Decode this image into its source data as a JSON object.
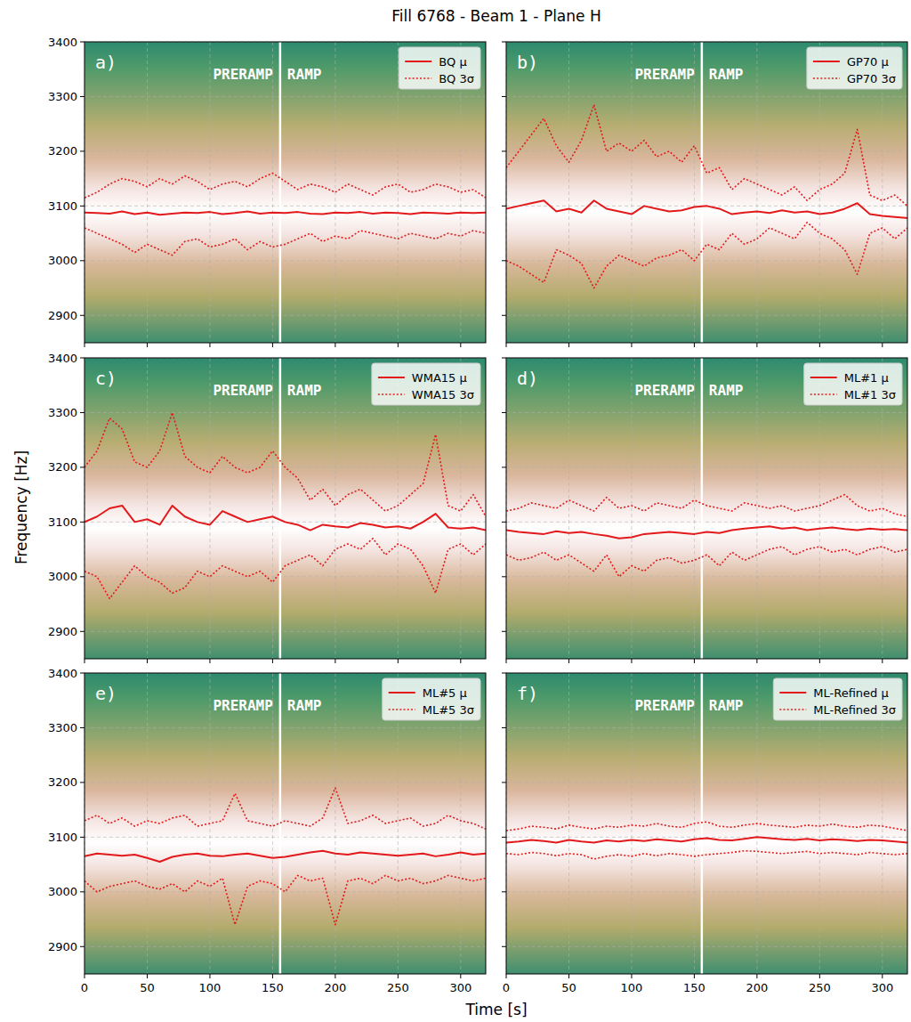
{
  "figure": {
    "title": "Fill 6768 - Beam 1 - Plane H",
    "xlabel": "Time [s]",
    "ylabel": "Frequency [Hz]"
  },
  "chart_data": [
    {
      "type": "line",
      "title": "a)",
      "tick_labels": "y",
      "grid": true,
      "legend": "upper right",
      "xlim": [
        0,
        320
      ],
      "ylim": [
        2850,
        3400
      ],
      "xticks": [
        0,
        50,
        100,
        150,
        200,
        250,
        300
      ],
      "yticks": [
        2900,
        3000,
        3100,
        3200,
        3300,
        3400
      ],
      "phase_boundary": 156,
      "phase_labels": [
        "PRERAMP",
        "RAMP"
      ],
      "spectral_peak": 3090,
      "spectral_width": 120,
      "x": [
        0,
        10,
        20,
        30,
        40,
        50,
        60,
        70,
        80,
        90,
        100,
        110,
        120,
        130,
        140,
        150,
        160,
        170,
        180,
        190,
        200,
        210,
        220,
        230,
        240,
        250,
        260,
        270,
        280,
        290,
        300,
        310,
        320
      ],
      "series": [
        {
          "name": "BQ μ",
          "color": "#e31a1c",
          "line_style": "solid",
          "values": [
            3088,
            3087,
            3086,
            3090,
            3085,
            3088,
            3084,
            3086,
            3088,
            3087,
            3089,
            3085,
            3087,
            3090,
            3086,
            3088,
            3087,
            3089,
            3086,
            3085,
            3088,
            3087,
            3089,
            3086,
            3088,
            3087,
            3085,
            3088,
            3087,
            3086,
            3088,
            3087,
            3088
          ]
        },
        {
          "name": "BQ 3σ",
          "color": "#e31a1c",
          "line_style": "dotted",
          "values": [
            3115,
            3125,
            3140,
            3150,
            3145,
            3135,
            3150,
            3140,
            3155,
            3145,
            3130,
            3140,
            3145,
            3135,
            3150,
            3160,
            3145,
            3130,
            3140,
            3135,
            3125,
            3140,
            3130,
            3120,
            3135,
            3140,
            3125,
            3130,
            3140,
            3135,
            3125,
            3130,
            3115
          ],
          "lower": [
            3060,
            3050,
            3040,
            3030,
            3015,
            3030,
            3020,
            3010,
            3035,
            3040,
            3025,
            3030,
            3040,
            3020,
            3035,
            3025,
            3030,
            3040,
            3050,
            3035,
            3045,
            3040,
            3055,
            3050,
            3045,
            3040,
            3050,
            3045,
            3040,
            3050,
            3045,
            3055,
            3050
          ]
        }
      ]
    },
    {
      "type": "line",
      "title": "b)",
      "tick_labels": false,
      "grid": true,
      "legend": "upper right",
      "xlim": [
        0,
        320
      ],
      "ylim": [
        2850,
        3400
      ],
      "xticks": [
        0,
        50,
        100,
        150,
        200,
        250,
        300
      ],
      "yticks": [
        2900,
        3000,
        3100,
        3200,
        3300,
        3400
      ],
      "phase_boundary": 156,
      "phase_labels": [
        "PRERAMP",
        "RAMP"
      ],
      "spectral_peak": 3090,
      "spectral_width": 120,
      "x": [
        0,
        10,
        20,
        30,
        40,
        50,
        60,
        70,
        80,
        90,
        100,
        110,
        120,
        130,
        140,
        150,
        160,
        170,
        180,
        190,
        200,
        210,
        220,
        230,
        240,
        250,
        260,
        270,
        280,
        290,
        300,
        310,
        320
      ],
      "series": [
        {
          "name": "GP70 μ",
          "color": "#e31a1c",
          "line_style": "solid",
          "values": [
            3095,
            3100,
            3105,
            3110,
            3090,
            3095,
            3088,
            3110,
            3095,
            3090,
            3085,
            3100,
            3095,
            3090,
            3092,
            3098,
            3100,
            3095,
            3085,
            3088,
            3090,
            3087,
            3092,
            3088,
            3090,
            3085,
            3088,
            3095,
            3105,
            3085,
            3082,
            3080,
            3078
          ]
        },
        {
          "name": "GP70 3σ",
          "color": "#e31a1c",
          "line_style": "dotted",
          "values": [
            3170,
            3200,
            3230,
            3260,
            3210,
            3180,
            3220,
            3285,
            3200,
            3215,
            3200,
            3220,
            3190,
            3200,
            3180,
            3210,
            3160,
            3170,
            3130,
            3150,
            3140,
            3130,
            3120,
            3135,
            3110,
            3130,
            3140,
            3160,
            3240,
            3120,
            3110,
            3120,
            3100
          ],
          "lower": [
            3000,
            2990,
            2975,
            2960,
            3020,
            3010,
            2995,
            2950,
            2990,
            3010,
            3000,
            2990,
            3005,
            3010,
            3020,
            3000,
            3030,
            3020,
            3050,
            3030,
            3040,
            3060,
            3050,
            3040,
            3070,
            3050,
            3040,
            3020,
            2975,
            3050,
            3060,
            3040,
            3060
          ]
        }
      ]
    },
    {
      "type": "line",
      "title": "c)",
      "tick_labels": "y",
      "grid": true,
      "legend": "upper right",
      "xlim": [
        0,
        320
      ],
      "ylim": [
        2850,
        3400
      ],
      "xticks": [
        0,
        50,
        100,
        150,
        200,
        250,
        300
      ],
      "yticks": [
        2900,
        3000,
        3100,
        3200,
        3300,
        3400
      ],
      "phase_boundary": 156,
      "phase_labels": [
        "PRERAMP",
        "RAMP"
      ],
      "spectral_peak": 3090,
      "spectral_width": 120,
      "x": [
        0,
        10,
        20,
        30,
        40,
        50,
        60,
        70,
        80,
        90,
        100,
        110,
        120,
        130,
        140,
        150,
        160,
        170,
        180,
        190,
        200,
        210,
        220,
        230,
        240,
        250,
        260,
        270,
        280,
        290,
        300,
        310,
        320
      ],
      "series": [
        {
          "name": "WMA15 μ",
          "color": "#e31a1c",
          "line_style": "solid",
          "values": [
            3100,
            3110,
            3125,
            3130,
            3100,
            3105,
            3095,
            3130,
            3110,
            3100,
            3095,
            3120,
            3110,
            3100,
            3105,
            3110,
            3100,
            3095,
            3085,
            3095,
            3092,
            3090,
            3098,
            3095,
            3090,
            3092,
            3088,
            3100,
            3115,
            3090,
            3088,
            3090,
            3085
          ]
        },
        {
          "name": "WMA15 3σ",
          "color": "#e31a1c",
          "line_style": "dotted",
          "values": [
            3200,
            3230,
            3290,
            3270,
            3210,
            3200,
            3230,
            3300,
            3220,
            3200,
            3190,
            3220,
            3200,
            3190,
            3200,
            3230,
            3200,
            3180,
            3140,
            3160,
            3130,
            3150,
            3160,
            3140,
            3120,
            3130,
            3150,
            3170,
            3260,
            3130,
            3120,
            3150,
            3110
          ],
          "lower": [
            3010,
            3000,
            2960,
            2990,
            3020,
            3000,
            2990,
            2970,
            2980,
            3010,
            3000,
            3020,
            3010,
            3000,
            3010,
            2990,
            3020,
            3030,
            3040,
            3020,
            3050,
            3060,
            3050,
            3070,
            3040,
            3060,
            3050,
            3020,
            2970,
            3050,
            3060,
            3040,
            3060
          ]
        }
      ]
    },
    {
      "type": "line",
      "title": "d)",
      "tick_labels": false,
      "grid": true,
      "legend": "upper right",
      "xlim": [
        0,
        320
      ],
      "ylim": [
        2850,
        3400
      ],
      "xticks": [
        0,
        50,
        100,
        150,
        200,
        250,
        300
      ],
      "yticks": [
        2900,
        3000,
        3100,
        3200,
        3300,
        3400
      ],
      "phase_boundary": 156,
      "phase_labels": [
        "PRERAMP",
        "RAMP"
      ],
      "spectral_peak": 3090,
      "spectral_width": 120,
      "x": [
        0,
        10,
        20,
        30,
        40,
        50,
        60,
        70,
        80,
        90,
        100,
        110,
        120,
        130,
        140,
        150,
        160,
        170,
        180,
        190,
        200,
        210,
        220,
        230,
        240,
        250,
        260,
        270,
        280,
        290,
        300,
        310,
        320
      ],
      "series": [
        {
          "name": "ML#1 μ",
          "color": "#e31a1c",
          "line_style": "solid",
          "values": [
            3085,
            3082,
            3080,
            3078,
            3083,
            3080,
            3082,
            3078,
            3075,
            3070,
            3072,
            3078,
            3080,
            3082,
            3080,
            3078,
            3082,
            3080,
            3085,
            3088,
            3090,
            3092,
            3088,
            3090,
            3085,
            3088,
            3090,
            3087,
            3085,
            3088,
            3086,
            3087,
            3085
          ]
        },
        {
          "name": "ML#1 3σ",
          "color": "#e31a1c",
          "line_style": "dotted",
          "values": [
            3120,
            3125,
            3135,
            3130,
            3125,
            3140,
            3130,
            3120,
            3145,
            3125,
            3130,
            3120,
            3135,
            3130,
            3125,
            3140,
            3130,
            3125,
            3120,
            3135,
            3130,
            3125,
            3130,
            3120,
            3125,
            3130,
            3140,
            3150,
            3130,
            3120,
            3125,
            3115,
            3110
          ],
          "lower": [
            3040,
            3030,
            3035,
            3045,
            3030,
            3040,
            3025,
            3010,
            3040,
            3000,
            3020,
            3010,
            3030,
            3035,
            3025,
            3030,
            3040,
            3020,
            3045,
            3030,
            3040,
            3050,
            3055,
            3040,
            3050,
            3055,
            3045,
            3050,
            3040,
            3050,
            3055,
            3045,
            3050
          ]
        }
      ]
    },
    {
      "type": "line",
      "title": "e)",
      "grid": true,
      "legend": "upper right",
      "xlim": [
        0,
        320
      ],
      "ylim": [
        2850,
        3400
      ],
      "xticks": [
        0,
        50,
        100,
        150,
        200,
        250,
        300
      ],
      "yticks": [
        2900,
        3000,
        3100,
        3200,
        3300,
        3400
      ],
      "phase_boundary": 156,
      "phase_labels": [
        "PRERAMP",
        "RAMP"
      ],
      "spectral_peak": 3090,
      "spectral_width": 120,
      "x": [
        0,
        10,
        20,
        30,
        40,
        50,
        60,
        70,
        80,
        90,
        100,
        110,
        120,
        130,
        140,
        150,
        160,
        170,
        180,
        190,
        200,
        210,
        220,
        230,
        240,
        250,
        260,
        270,
        280,
        290,
        300,
        310,
        320
      ],
      "series": [
        {
          "name": "ML#5 μ",
          "color": "#e31a1c",
          "line_style": "solid",
          "values": [
            3065,
            3070,
            3068,
            3066,
            3068,
            3062,
            3055,
            3064,
            3068,
            3070,
            3066,
            3065,
            3068,
            3070,
            3066,
            3062,
            3064,
            3068,
            3072,
            3075,
            3070,
            3068,
            3072,
            3070,
            3068,
            3066,
            3068,
            3070,
            3065,
            3068,
            3072,
            3068,
            3070
          ]
        },
        {
          "name": "ML#5 3σ",
          "color": "#e31a1c",
          "line_style": "dotted",
          "values": [
            3130,
            3140,
            3125,
            3135,
            3120,
            3130,
            3125,
            3135,
            3140,
            3120,
            3125,
            3130,
            3180,
            3130,
            3125,
            3120,
            3130,
            3125,
            3120,
            3135,
            3190,
            3125,
            3130,
            3140,
            3125,
            3130,
            3135,
            3120,
            3125,
            3140,
            3130,
            3125,
            3115
          ],
          "lower": [
            3020,
            3000,
            3010,
            3015,
            3020,
            3010,
            3005,
            3015,
            3000,
            3020,
            3010,
            3025,
            2940,
            3010,
            3020,
            3015,
            3000,
            3030,
            3020,
            3025,
            2940,
            3020,
            3025,
            3015,
            3030,
            3020,
            3025,
            3015,
            3020,
            3030,
            3025,
            3020,
            3025
          ]
        }
      ]
    },
    {
      "type": "line",
      "title": "f)",
      "tick_labels": "x",
      "grid": true,
      "legend": "upper right",
      "xlim": [
        0,
        320
      ],
      "ylim": [
        2850,
        3400
      ],
      "xticks": [
        0,
        50,
        100,
        150,
        200,
        250,
        300
      ],
      "yticks": [
        2900,
        3000,
        3100,
        3200,
        3300,
        3400
      ],
      "phase_boundary": 156,
      "phase_labels": [
        "PRERAMP",
        "RAMP"
      ],
      "spectral_peak": 3090,
      "spectral_width": 120,
      "x": [
        0,
        10,
        20,
        30,
        40,
        50,
        60,
        70,
        80,
        90,
        100,
        110,
        120,
        130,
        140,
        150,
        160,
        170,
        180,
        190,
        200,
        210,
        220,
        230,
        240,
        250,
        260,
        270,
        280,
        290,
        300,
        310,
        320
      ],
      "series": [
        {
          "name": "ML-Refined μ",
          "color": "#e31a1c",
          "line_style": "solid",
          "values": [
            3090,
            3092,
            3095,
            3093,
            3090,
            3095,
            3092,
            3090,
            3094,
            3092,
            3095,
            3093,
            3096,
            3094,
            3092,
            3096,
            3098,
            3095,
            3094,
            3097,
            3100,
            3098,
            3096,
            3095,
            3097,
            3094,
            3096,
            3095,
            3093,
            3095,
            3094,
            3092,
            3090
          ]
        },
        {
          "name": "ML-Refined 3σ",
          "color": "#e31a1c",
          "line_style": "dotted",
          "values": [
            3112,
            3115,
            3120,
            3118,
            3115,
            3122,
            3118,
            3115,
            3120,
            3118,
            3122,
            3120,
            3125,
            3120,
            3118,
            3125,
            3128,
            3120,
            3118,
            3122,
            3125,
            3122,
            3120,
            3118,
            3122,
            3120,
            3124,
            3120,
            3118,
            3122,
            3120,
            3116,
            3112
          ],
          "lower": [
            3070,
            3068,
            3072,
            3070,
            3066,
            3070,
            3068,
            3060,
            3065,
            3068,
            3065,
            3070,
            3066,
            3070,
            3068,
            3065,
            3068,
            3070,
            3072,
            3075,
            3074,
            3072,
            3070,
            3072,
            3074,
            3070,
            3072,
            3070,
            3068,
            3072,
            3070,
            3068,
            3070
          ]
        }
      ]
    }
  ]
}
